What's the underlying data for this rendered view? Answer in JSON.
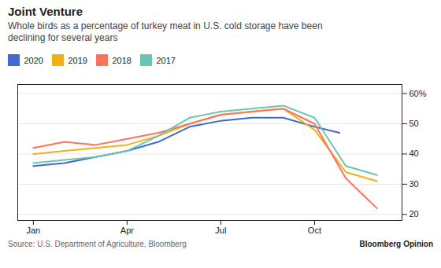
{
  "chart_data": {
    "type": "line",
    "title": "Joint Venture",
    "subtitle": "Whole birds as a percentage of turkey meat in U.S. cold storage have been\ndeclining for several years",
    "caption": "Source: U.S. Department of Agriculture, Bloomberg",
    "annotations": [
      "Bloomberg",
      "Opinion"
    ],
    "series": [
      {
        "name": "2020",
        "x": [
          1,
          2,
          3,
          4,
          5,
          6,
          7,
          8,
          9,
          10,
          10.8
        ],
        "values": [
          36,
          37,
          39,
          41,
          44,
          49,
          51,
          52,
          52,
          49,
          47
        ]
      },
      {
        "name": "2019",
        "x": [
          1,
          2,
          3,
          4,
          5,
          6,
          7,
          8,
          9,
          10,
          11,
          12
        ],
        "values": [
          40,
          41,
          42,
          43,
          46,
          50,
          53,
          54,
          55,
          48,
          34,
          31
        ]
      },
      {
        "name": "2018",
        "x": [
          1,
          2,
          3,
          4,
          5,
          6,
          7,
          8,
          9,
          10,
          11,
          12
        ],
        "values": [
          42,
          44,
          43,
          45,
          47,
          50,
          53,
          54,
          55,
          50,
          32,
          22
        ]
      },
      {
        "name": "2017",
        "x": [
          1,
          2,
          3,
          4,
          5,
          6,
          7,
          8,
          9,
          10,
          11,
          12
        ],
        "values": [
          37,
          38,
          39,
          41,
          46,
          52,
          54,
          55,
          56,
          52,
          36,
          33
        ]
      }
    ],
    "xlim": [
      0.5,
      12.8
    ],
    "xticks": [
      {
        "value": 1,
        "label": "Jan"
      },
      {
        "value": 4,
        "label": "Apr"
      },
      {
        "value": 7,
        "label": "Jul"
      },
      {
        "value": 10,
        "label": "Oct"
      }
    ],
    "ylim": [
      18,
      63
    ],
    "yticks": [
      20,
      30,
      40,
      50,
      {
        "value": 60,
        "label": "60%"
      }
    ],
    "grid": "y",
    "legend": "top-left"
  }
}
